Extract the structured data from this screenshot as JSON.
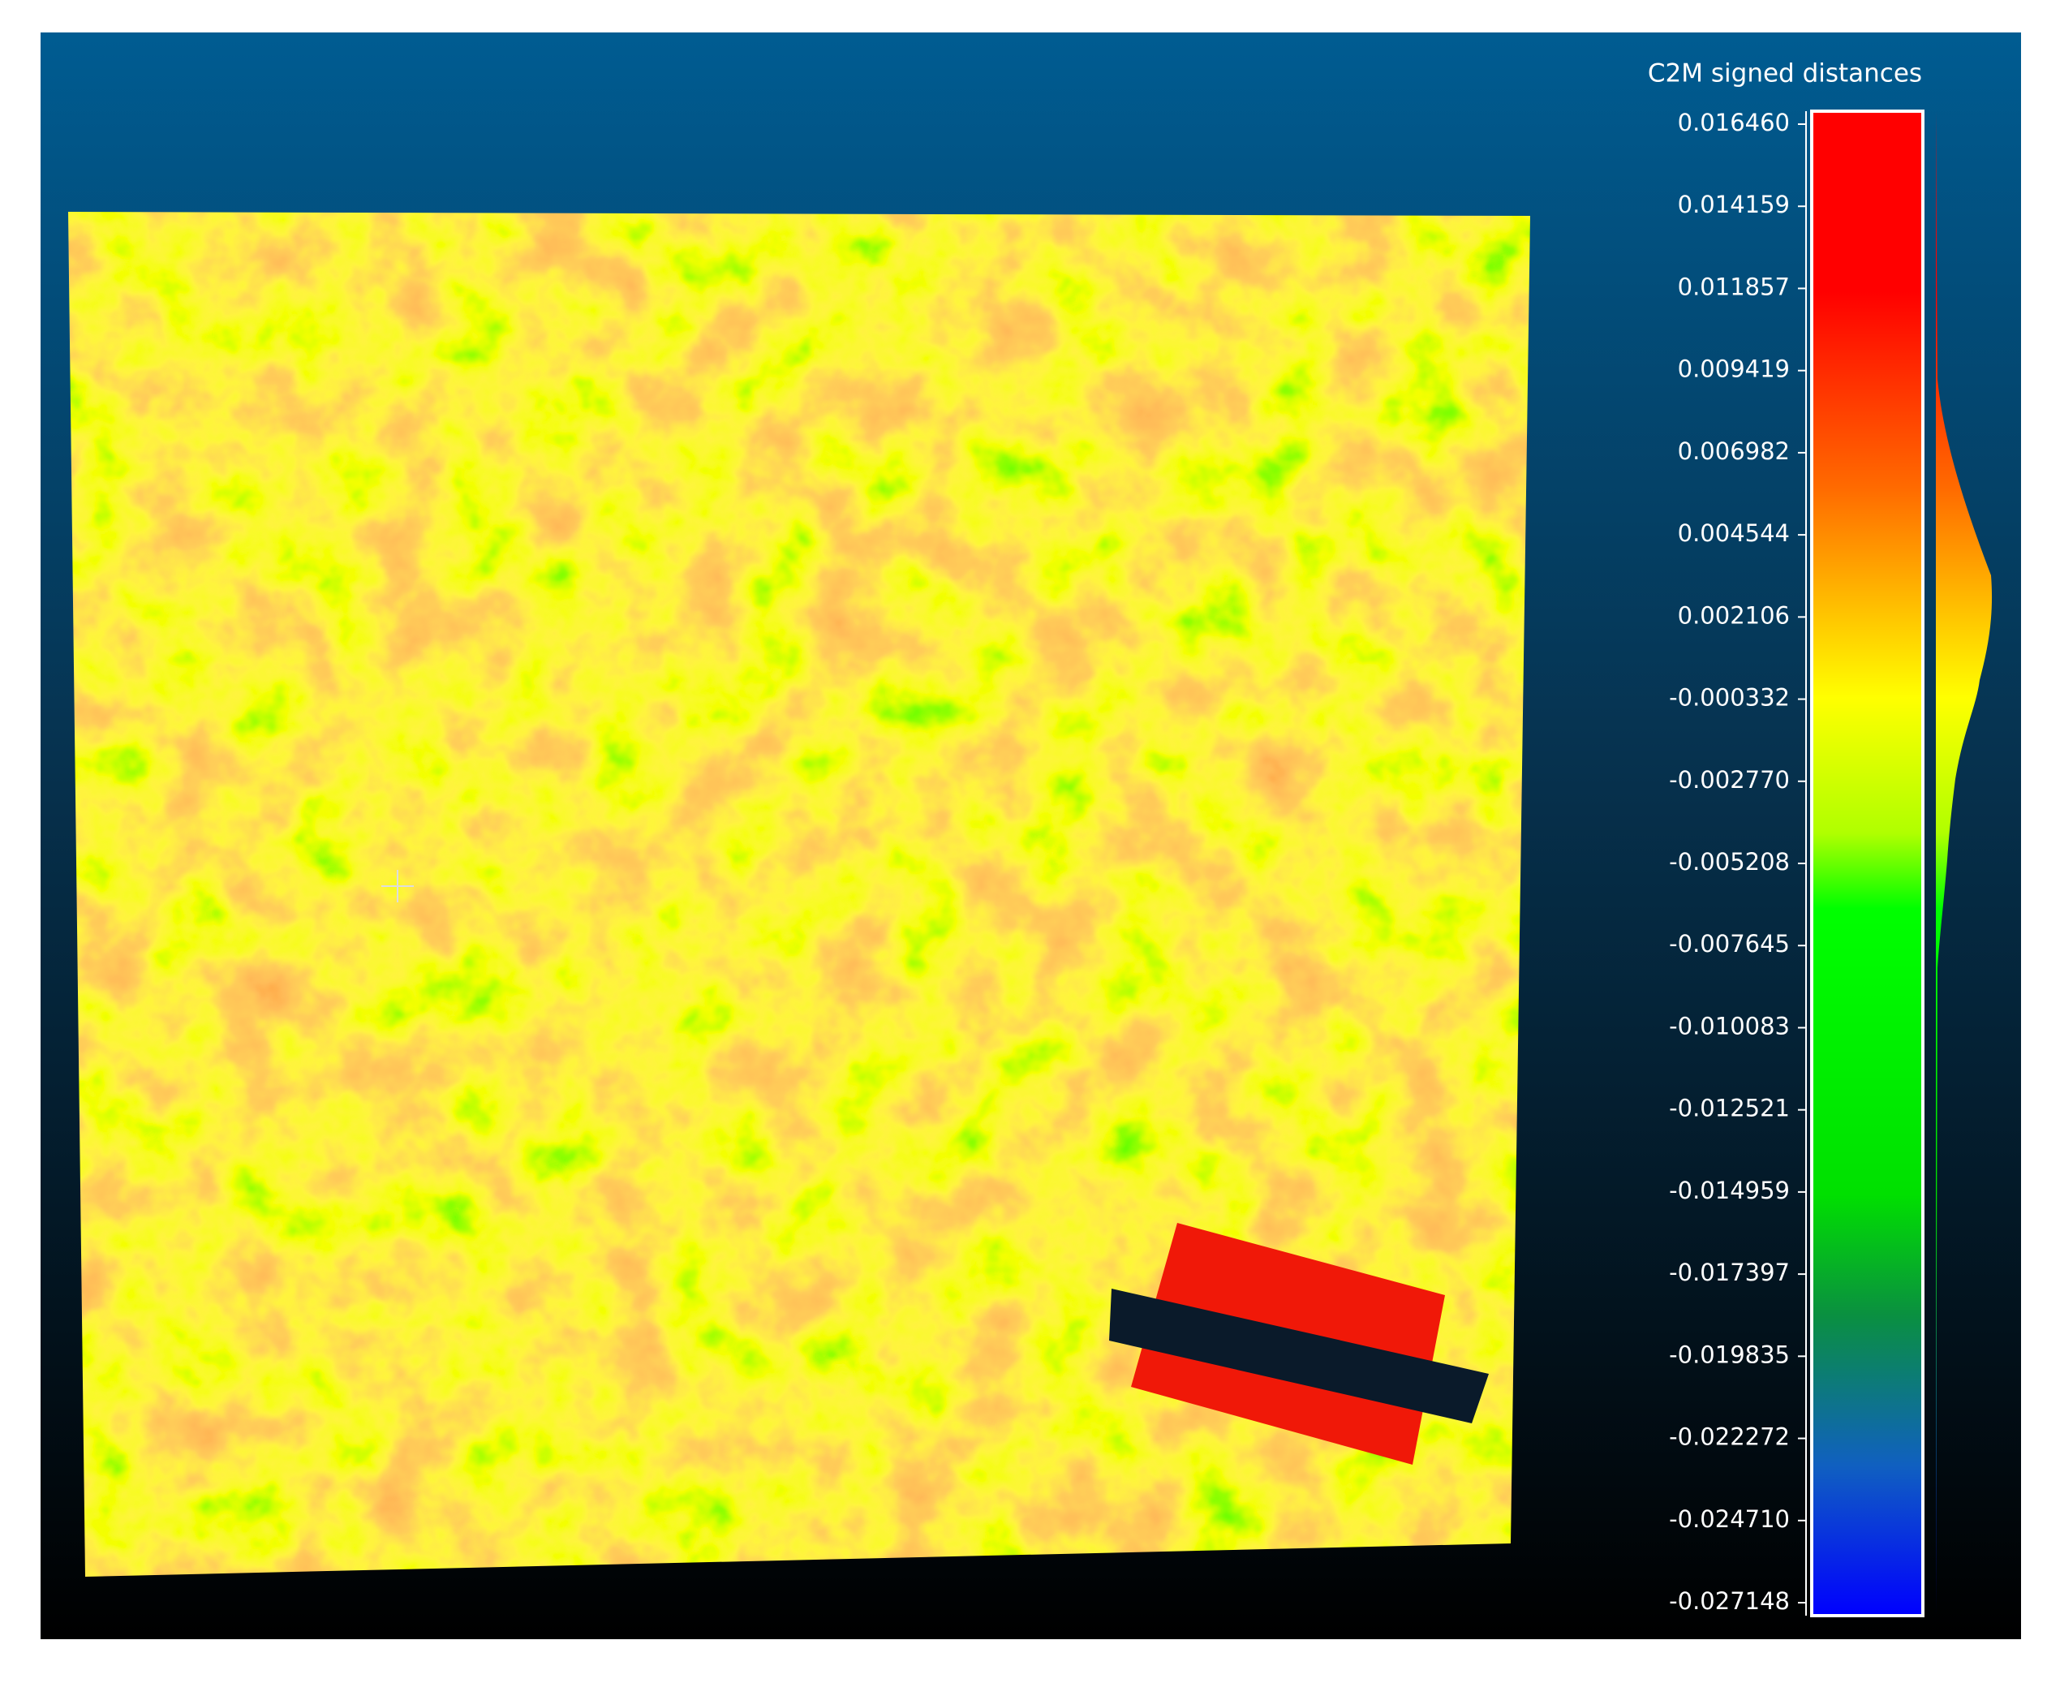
{
  "color_scale": {
    "title": "C2M signed distances",
    "ticks": [
      "0.016460",
      "0.014159",
      "0.011857",
      "0.009419",
      "0.006982",
      "0.004544",
      "0.002106",
      "-0.000332",
      "-0.002770",
      "-0.005208",
      "-0.007645",
      "-0.010083",
      "-0.012521",
      "-0.014959",
      "-0.017397",
      "-0.019835",
      "-0.022272",
      "-0.024710",
      "-0.027148"
    ]
  }
}
